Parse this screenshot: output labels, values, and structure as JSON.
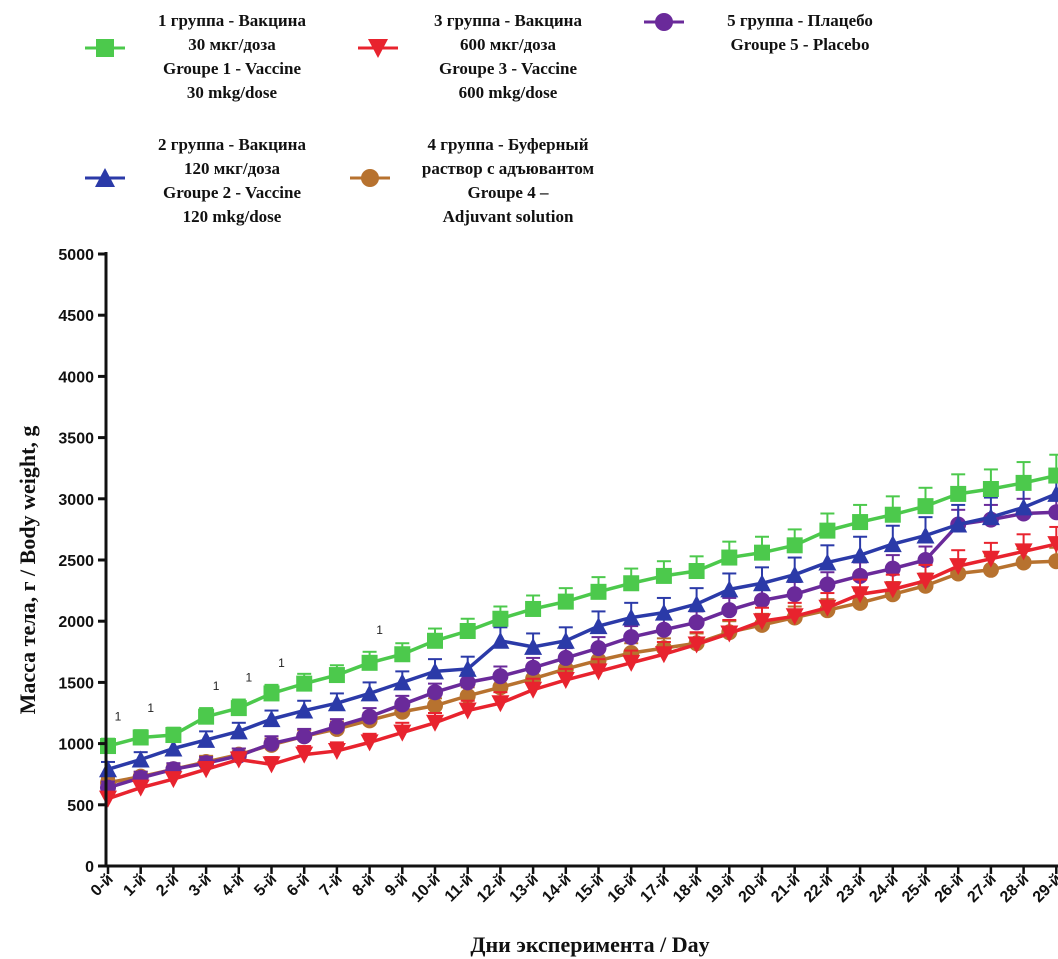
{
  "chart_data": {
    "type": "line",
    "xlabel": "Дни эксперимента / Day",
    "ylabel": "Масса тела, г / Body weight, g",
    "ylim": [
      0,
      5000
    ],
    "yticks": [
      0,
      500,
      1000,
      1500,
      2000,
      2500,
      3000,
      3500,
      4000,
      4500,
      5000
    ],
    "grid": false,
    "legend_position": "top",
    "categories": [
      "0-й",
      "1-й",
      "2-й",
      "3-й",
      "4-й",
      "5-й",
      "6-й",
      "7-й",
      "8-й",
      "9-й",
      "10-й",
      "11-й",
      "12-й",
      "13-й",
      "14-й",
      "15-й",
      "16-й",
      "17-й",
      "18-й",
      "19-й",
      "20-й",
      "21-й",
      "22-й",
      "23-й",
      "24-й",
      "25-й",
      "26-й",
      "27-й",
      "28-й",
      "29-й"
    ],
    "series": [
      {
        "name": "1 группа - Вакцина 30 мкг/доза Groupe 1 - Vaccine 30 mkg/dose",
        "legend_lines": [
          "1 группа - Вакцина",
          "30 мкг/доза",
          "Groupe 1 - Vaccine",
          "30 mkg/dose"
        ],
        "color": "#4cc94c",
        "marker": "square",
        "values": [
          980,
          1050,
          1070,
          1220,
          1290,
          1410,
          1490,
          1560,
          1660,
          1730,
          1840,
          1920,
          2020,
          2100,
          2160,
          2240,
          2310,
          2370,
          2410,
          2520,
          2560,
          2620,
          2740,
          2810,
          2870,
          2940,
          3040,
          3080,
          3130,
          3190
        ],
        "errors": [
          60,
          60,
          60,
          70,
          70,
          70,
          80,
          80,
          90,
          90,
          100,
          100,
          100,
          110,
          110,
          120,
          120,
          120,
          120,
          130,
          130,
          130,
          140,
          140,
          150,
          150,
          160,
          160,
          170,
          170
        ]
      },
      {
        "name": "2 группа - Вакцина 120 мкг/доза Groupe 2 - Vaccine 120 mkg/dose",
        "legend_lines": [
          "2 группа - Вакцина",
          "120 мкг/доза",
          "Groupe 2 - Vaccine",
          "120 mkg/dose"
        ],
        "color": "#2b3aa8",
        "marker": "triangle-up",
        "values": [
          790,
          870,
          960,
          1030,
          1100,
          1200,
          1270,
          1330,
          1410,
          1500,
          1590,
          1610,
          1840,
          1790,
          1840,
          1960,
          2030,
          2070,
          2140,
          2260,
          2310,
          2380,
          2480,
          2540,
          2630,
          2700,
          2790,
          2850,
          2930,
          3040
        ],
        "errors": [
          60,
          60,
          60,
          70,
          70,
          70,
          80,
          80,
          90,
          90,
          100,
          100,
          110,
          110,
          110,
          120,
          120,
          120,
          130,
          130,
          130,
          140,
          140,
          150,
          150,
          150,
          160,
          160,
          160,
          170
        ]
      },
      {
        "name": "3 группа - Вакцина 600 мкг/доза Groupe 3 - Vaccine 600 mkg/dose",
        "legend_lines": [
          "3 группа - Вакцина",
          "600 мкг/доза",
          "Groupe 3 - Vaccine",
          "600 mkg/dose"
        ],
        "color": "#e8232e",
        "marker": "triangle-down",
        "values": [
          550,
          640,
          710,
          790,
          870,
          830,
          910,
          940,
          1010,
          1090,
          1170,
          1270,
          1330,
          1440,
          1520,
          1590,
          1660,
          1730,
          1810,
          1900,
          2000,
          2040,
          2110,
          2220,
          2260,
          2330,
          2450,
          2510,
          2570,
          2630
        ],
        "errors": [
          50,
          50,
          50,
          60,
          60,
          60,
          70,
          70,
          70,
          80,
          80,
          80,
          90,
          90,
          90,
          100,
          100,
          100,
          100,
          110,
          110,
          110,
          120,
          120,
          120,
          130,
          130,
          130,
          140,
          140
        ]
      },
      {
        "name": "4 группа - Буферный раствор с адъювантом Groupe 4 – Adjuvant solution",
        "legend_lines": [
          "4 группа - Буферный",
          "раствор с адъювантом",
          "Groupe 4 –",
          "Adjuvant solution"
        ],
        "color": "#b7722f",
        "marker": "circle",
        "values": [
          680,
          730,
          790,
          850,
          910,
          990,
          1060,
          1120,
          1190,
          1260,
          1310,
          1390,
          1460,
          1530,
          1610,
          1680,
          1740,
          1780,
          1820,
          1910,
          1970,
          2030,
          2090,
          2150,
          2220,
          2290,
          2390,
          2420,
          2480,
          2490
        ],
        "errors": [
          40,
          40,
          40,
          50,
          50,
          50,
          50,
          60,
          60,
          60,
          60,
          70,
          70,
          70,
          70,
          80,
          80,
          80,
          80,
          90,
          90,
          90,
          90,
          100,
          100,
          100,
          110,
          110,
          110,
          110
        ]
      },
      {
        "name": "5 группа - Плацебо Groupe 5 - Placebo",
        "legend_lines": [
          "5 группа - Плацебо",
          "Groupe 5 - Placebo"
        ],
        "color": "#6a2a9a",
        "marker": "circle",
        "values": [
          640,
          720,
          790,
          840,
          900,
          1000,
          1060,
          1140,
          1220,
          1320,
          1420,
          1500,
          1550,
          1620,
          1700,
          1780,
          1870,
          1930,
          1990,
          2090,
          2170,
          2220,
          2300,
          2370,
          2430,
          2500,
          2790,
          2830,
          2880,
          2890
        ],
        "errors": [
          50,
          50,
          50,
          50,
          60,
          60,
          60,
          60,
          70,
          70,
          70,
          80,
          80,
          80,
          80,
          90,
          90,
          90,
          90,
          100,
          100,
          100,
          100,
          110,
          110,
          110,
          120,
          120,
          120,
          120
        ]
      }
    ],
    "annotations": [
      {
        "day_index": 0,
        "text": "1"
      },
      {
        "day_index": 1,
        "text": "1"
      },
      {
        "day_index": 3,
        "text": "1"
      },
      {
        "day_index": 4,
        "text": "1"
      },
      {
        "day_index": 5,
        "text": "1"
      },
      {
        "day_index": 8,
        "text": "1"
      }
    ]
  }
}
